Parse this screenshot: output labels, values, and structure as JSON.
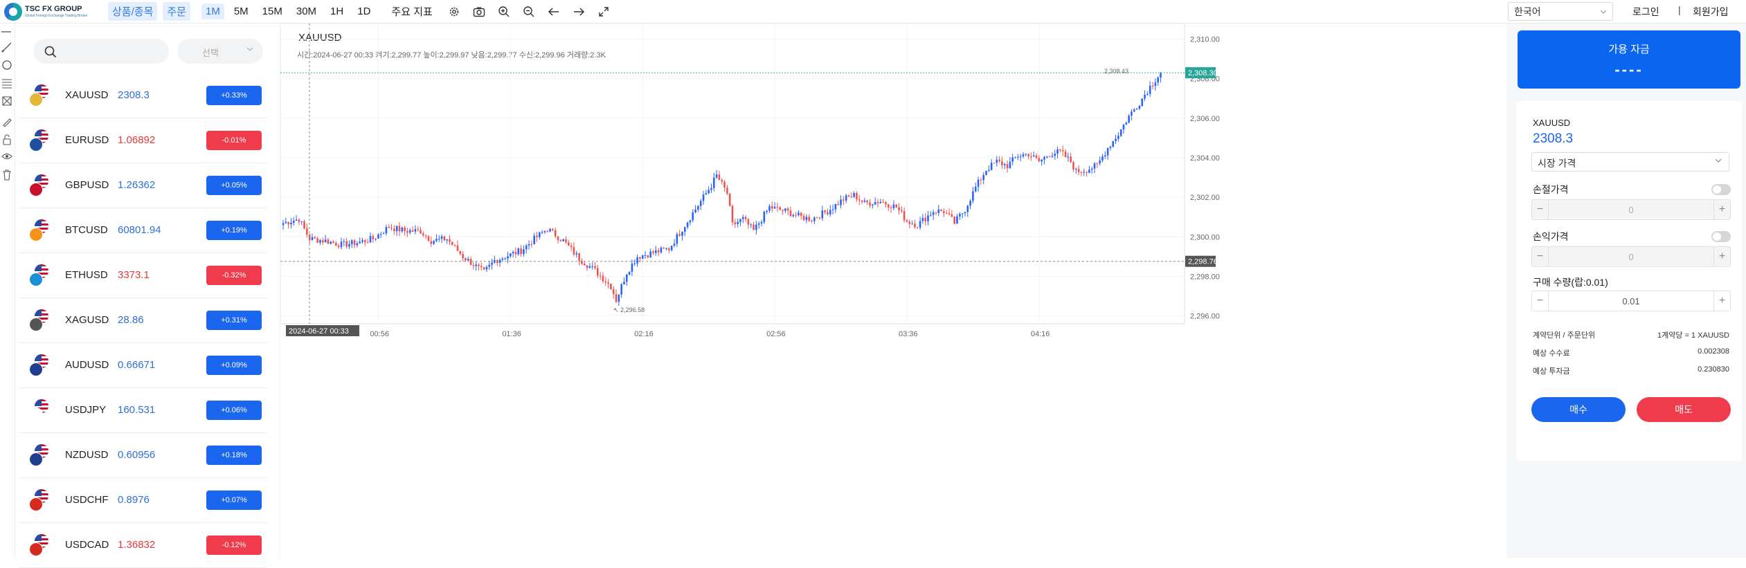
{
  "brand": {
    "name": "TSC FX GROUP",
    "tagline": "Global Foreign Exchange Trading Broker"
  },
  "toolbar": {
    "products": "상품/종목",
    "order": "주문",
    "timeframes": [
      "1M",
      "5M",
      "15M",
      "30M",
      "1H",
      "1D"
    ],
    "active_timeframe": "1M",
    "indicators": "주요 지표",
    "icons": [
      "settings-icon",
      "camera-icon",
      "zoom-in-icon",
      "zoom-out-icon",
      "arrow-left-icon",
      "arrow-right-icon",
      "fullscreen-icon"
    ]
  },
  "header_right": {
    "language": "한국어",
    "login": "로그인",
    "separator": "|",
    "signup": "회원가입"
  },
  "watchlist": {
    "search_placeholder": "",
    "select_label": "선택",
    "items": [
      {
        "symbol": "XAUUSD",
        "price": "2308.3",
        "change": "+0.33%",
        "dir": "up",
        "flag2": "#e5b83a"
      },
      {
        "symbol": "EURUSD",
        "price": "1.06892",
        "change": "-0.01%",
        "dir": "down",
        "flag2": "#1f4fa0"
      },
      {
        "symbol": "GBPUSD",
        "price": "1.26362",
        "change": "+0.05%",
        "dir": "up",
        "flag2": "#c8102e"
      },
      {
        "symbol": "BTCUSD",
        "price": "60801.94",
        "change": "+0.19%",
        "dir": "up",
        "flag2": "#f7931a"
      },
      {
        "symbol": "ETHUSD",
        "price": "3373.1",
        "change": "-0.32%",
        "dir": "down",
        "flag2": "#1d8fd6"
      },
      {
        "symbol": "XAGUSD",
        "price": "28.86",
        "change": "+0.31%",
        "dir": "up",
        "flag2": "#555555"
      },
      {
        "symbol": "AUDUSD",
        "price": "0.66671",
        "change": "+0.09%",
        "dir": "up",
        "flag2": "#1f3f8f"
      },
      {
        "symbol": "USDJPY",
        "price": "160.531",
        "change": "+0.06%",
        "dir": "up",
        "flag2": "#ffffff"
      },
      {
        "symbol": "NZDUSD",
        "price": "0.60956",
        "change": "+0.18%",
        "dir": "up",
        "flag2": "#1f3f8f"
      },
      {
        "symbol": "USDCHF",
        "price": "0.8976",
        "change": "+0.07%",
        "dir": "up",
        "flag2": "#d52b1e"
      },
      {
        "symbol": "USDCAD",
        "price": "1.36832",
        "change": "-0.12%",
        "dir": "down",
        "flag2": "#d52b1e"
      }
    ]
  },
  "chart": {
    "symbol": "XAUUSD",
    "info": "시간:2024-06-27 00:33   켜기:2,299.77   높이:2,299.97   낮음:2,299.77   수신:2,299.96   거래량:2.3K",
    "crosshair_time": "2024-06-27 00:33",
    "crosshair_price": "2,298.76",
    "last_price_label": "2,308.30",
    "high_annotation": "2,308.43",
    "low_annotation": "2,296.58",
    "colors": {
      "up": "#2962ff",
      "down": "#ef5350",
      "last_line": "#26a69a"
    }
  },
  "chart_data": {
    "type": "candlestick",
    "x_ticks": [
      "00:56",
      "01:36",
      "02:16",
      "02:56",
      "03:36",
      "04:16"
    ],
    "y_ticks": [
      "2,296.00",
      "2,298.00",
      "2,300.00",
      "2,302.00",
      "2,304.00",
      "2,306.00",
      "2,308.00",
      "2,310.00"
    ],
    "ylim": [
      2295.6,
      2310.3
    ],
    "close_path": [
      [
        0,
        2300.7
      ],
      [
        6,
        2300.9
      ],
      [
        10,
        2299.9
      ],
      [
        16,
        2299.8
      ],
      [
        22,
        2299.6
      ],
      [
        28,
        2299.7
      ],
      [
        34,
        2299.9
      ],
      [
        40,
        2300.5
      ],
      [
        46,
        2300.3
      ],
      [
        52,
        2300.3
      ],
      [
        56,
        2299.8
      ],
      [
        62,
        2299.9
      ],
      [
        68,
        2299.0
      ],
      [
        76,
        2298.2
      ],
      [
        80,
        2298.8
      ],
      [
        84,
        2299.0
      ],
      [
        90,
        2299.3
      ],
      [
        96,
        2300.0
      ],
      [
        100,
        2300.4
      ],
      [
        106,
        2299.8
      ],
      [
        112,
        2298.9
      ],
      [
        118,
        2298.3
      ],
      [
        124,
        2297.5
      ],
      [
        126,
        2296.8
      ],
      [
        130,
        2298.2
      ],
      [
        134,
        2299.0
      ],
      [
        140,
        2299.2
      ],
      [
        146,
        2299.4
      ],
      [
        152,
        2300.6
      ],
      [
        156,
        2301.4
      ],
      [
        162,
        2302.6
      ],
      [
        164,
        2303.1
      ],
      [
        168,
        2302.2
      ],
      [
        170,
        2300.6
      ],
      [
        174,
        2300.9
      ],
      [
        178,
        2300.3
      ],
      [
        184,
        2301.5
      ],
      [
        190,
        2301.3
      ],
      [
        196,
        2301.0
      ],
      [
        200,
        2300.9
      ],
      [
        206,
        2301.3
      ],
      [
        212,
        2301.9
      ],
      [
        216,
        2302.1
      ],
      [
        220,
        2301.7
      ],
      [
        226,
        2301.8
      ],
      [
        232,
        2301.5
      ],
      [
        236,
        2300.8
      ],
      [
        240,
        2300.6
      ],
      [
        246,
        2301.3
      ],
      [
        250,
        2301.3
      ],
      [
        254,
        2300.7
      ],
      [
        258,
        2301.4
      ],
      [
        262,
        2302.5
      ],
      [
        266,
        2303.4
      ],
      [
        270,
        2303.8
      ],
      [
        274,
        2303.6
      ],
      [
        278,
        2304.1
      ],
      [
        282,
        2304.2
      ],
      [
        286,
        2303.8
      ],
      [
        290,
        2304.2
      ],
      [
        294,
        2304.3
      ],
      [
        298,
        2303.8
      ],
      [
        300,
        2303.3
      ],
      [
        304,
        2303.4
      ],
      [
        308,
        2303.6
      ],
      [
        312,
        2304.5
      ],
      [
        316,
        2305.2
      ],
      [
        320,
        2306.1
      ],
      [
        324,
        2306.8
      ],
      [
        328,
        2307.6
      ],
      [
        332,
        2308.3
      ]
    ]
  },
  "order_panel": {
    "available_funds_label": "가용 자금",
    "available_funds_value": "----",
    "symbol": "XAUUSD",
    "price": "2308.3",
    "order_type": "시장 가격",
    "stop_loss_label": "손절가격",
    "stop_loss_value": "0",
    "take_profit_label": "손익가격",
    "take_profit_value": "0",
    "quantity_label": "구매 수량(랍:0.01)",
    "quantity_value": "0.01",
    "contract_label": "계약단위 / 주문단위",
    "contract_value": "1계약당 = 1 XAUUSD",
    "fee_label": "예상 수수료",
    "fee_value": "0.002308",
    "invest_label": "예상 투자금",
    "invest_value": "0.230830",
    "buy": "매수",
    "sell": "매도"
  }
}
